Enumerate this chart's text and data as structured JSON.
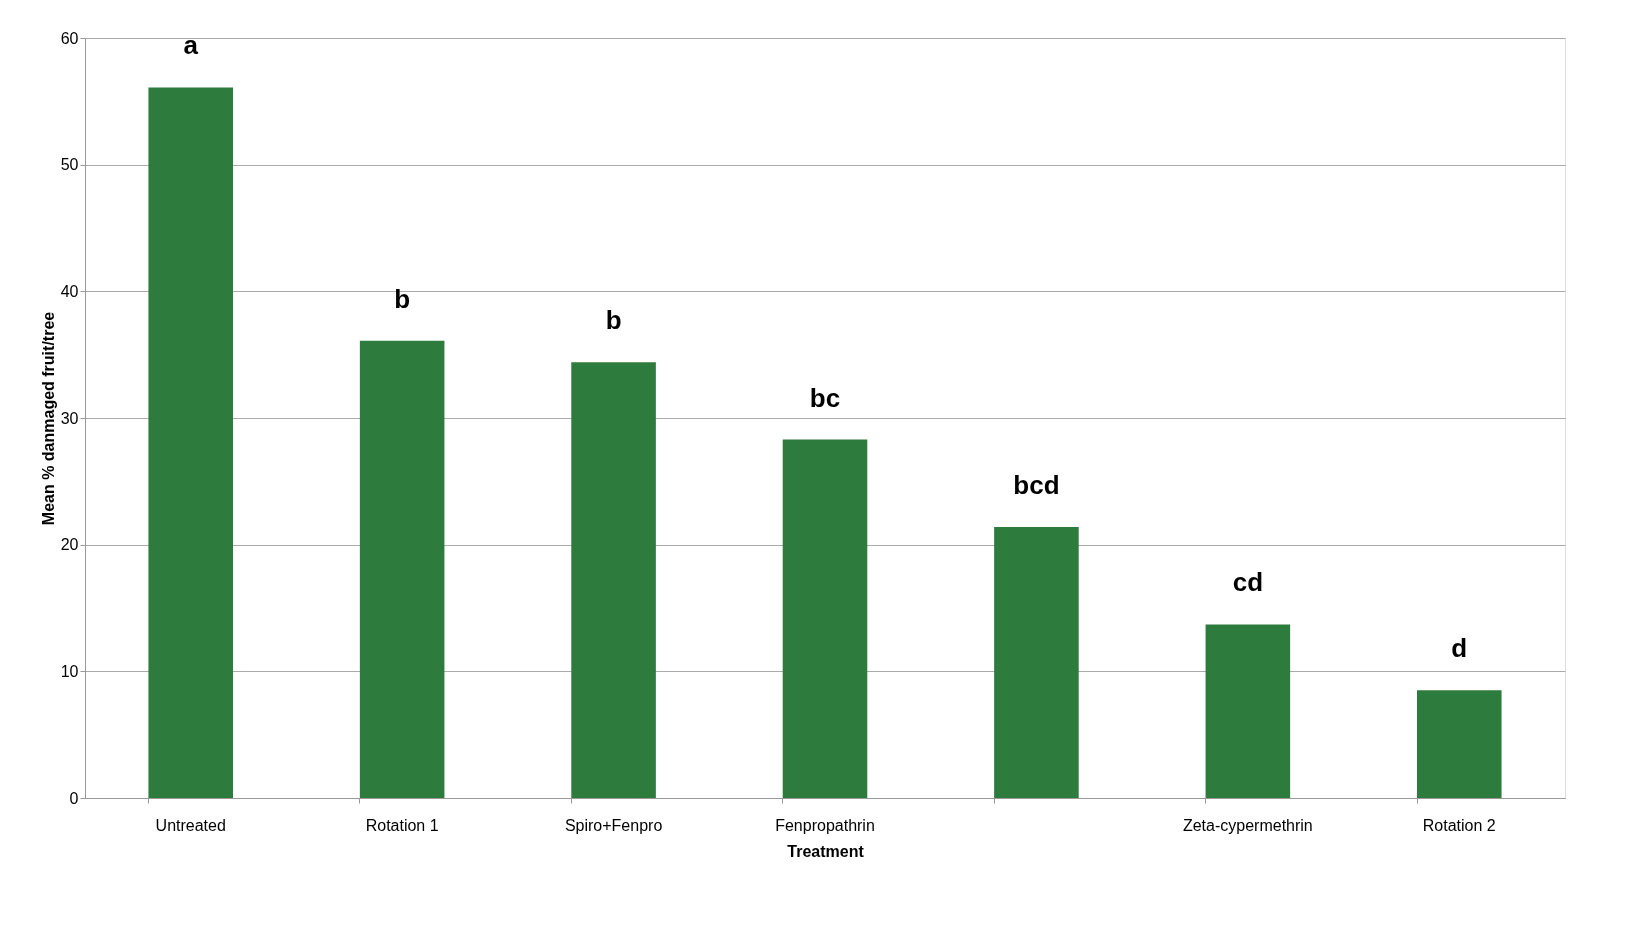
{
  "chart_data": {
    "type": "bar",
    "xlabel": "Treatment",
    "ylabel": "Mean % danmaged fruit/tree",
    "categories": [
      "Untreated",
      "Rotation 1",
      "Spiro+Fenpro",
      "Fenpropathrin",
      null,
      "Zeta-cypermethrin",
      "Rotation 2"
    ],
    "values": [
      56.1,
      36.1,
      34.4,
      28.3,
      21.4,
      13.7,
      8.5
    ],
    "color": "#2e7b3e",
    "ylim": [
      0,
      60
    ],
    "yticks": [
      0,
      10,
      20,
      30,
      40,
      50,
      60
    ],
    "grid": "y",
    "annotations": [
      "a",
      "b",
      "b",
      "bc",
      "bcd",
      "cd",
      "d"
    ]
  }
}
